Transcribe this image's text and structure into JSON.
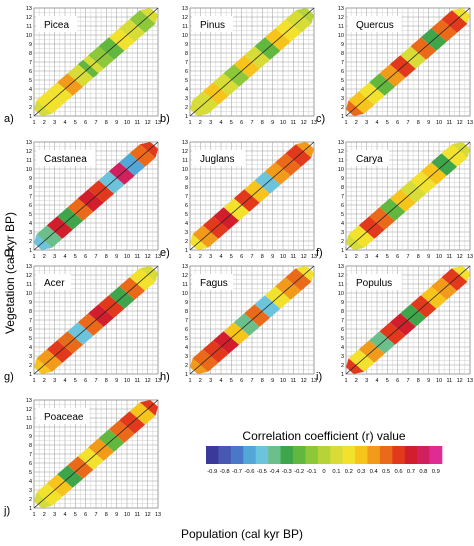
{
  "figure": {
    "ylabel": "Vegetation (cal kyr BP)",
    "xlabel": "Population (cal kyr BP)"
  },
  "colorbar": {
    "title": "Correlation coefficient (r) value",
    "ticks": [
      "-0.9",
      "-0.8",
      "-0.7",
      "-0.6",
      "-0.5",
      "-0.4",
      "-0.3",
      "-0.2",
      "-0.1",
      "0",
      "0.1",
      "0.2",
      "0.3",
      "0.4",
      "0.5",
      "0.6",
      "0.7",
      "0.8",
      "0.9"
    ],
    "colors": [
      "#3b3a9a",
      "#4658b0",
      "#4a78c8",
      "#52a6d8",
      "#6cc4dc",
      "#6bbf8a",
      "#3fa54a",
      "#62b83e",
      "#8cc83a",
      "#b6d43a",
      "#d8dc36",
      "#f2e22e",
      "#f7c41c",
      "#f29a1a",
      "#ea6a1a",
      "#e2391c",
      "#d21e2c",
      "#d0205e",
      "#e02c92"
    ]
  },
  "chart_data": [
    {
      "panel": "a)",
      "title": "Picea",
      "type": "heatmap",
      "x": [
        1,
        2,
        3,
        4,
        5,
        6,
        6.5,
        7,
        8,
        9,
        10,
        11,
        12
      ],
      "r": [
        0.1,
        0.2,
        0.25,
        0.4,
        0.1,
        -0.2,
        0.1,
        -0.1,
        -0.2,
        0.2,
        0.1,
        -0.1,
        0.1
      ],
      "xlim": [
        1,
        13
      ],
      "ylim": [
        1,
        13
      ],
      "xticks": [
        "1",
        "2",
        "3",
        "4",
        "5",
        "6",
        "7",
        "8",
        "9",
        "10",
        "11",
        "12",
        "13"
      ],
      "yticks": [
        "1",
        "2",
        "3",
        "4",
        "5",
        "6",
        "7",
        "8",
        "9",
        "10",
        "11",
        "12",
        "13"
      ]
    },
    {
      "panel": "b)",
      "title": "Pinus",
      "type": "heatmap",
      "x": [
        1,
        2,
        3,
        4,
        5,
        6,
        7,
        8,
        9,
        10,
        11,
        12
      ],
      "r": [
        0.1,
        0.1,
        0.3,
        0.1,
        -0.1,
        0.3,
        0.1,
        -0.2,
        0.3,
        0.2,
        0.1,
        0
      ],
      "xlim": [
        1,
        13
      ],
      "ylim": [
        1,
        13
      ],
      "xticks": [
        "1",
        "2",
        "3",
        "4",
        "5",
        "6",
        "7",
        "8",
        "9",
        "10",
        "11",
        "12",
        "13"
      ],
      "yticks": [
        "1",
        "2",
        "3",
        "4",
        "5",
        "6",
        "7",
        "8",
        "9",
        "10",
        "11",
        "12",
        "13"
      ]
    },
    {
      "panel": "c)",
      "title": "Quercus",
      "type": "heatmap",
      "x": [
        1,
        2,
        3,
        4,
        5,
        6,
        7,
        8,
        9,
        10,
        11,
        12
      ],
      "r": [
        0.5,
        0.3,
        0.2,
        -0.2,
        0.4,
        0.6,
        0.1,
        0.5,
        -0.3,
        0.5,
        0.6,
        0.2
      ],
      "xlim": [
        1,
        13
      ],
      "ylim": [
        1,
        13
      ],
      "xticks": [
        "1",
        "2",
        "3",
        "4",
        "5",
        "6",
        "7",
        "8",
        "9",
        "10",
        "11",
        "12",
        "13"
      ],
      "yticks": [
        "1",
        "2",
        "3",
        "4",
        "5",
        "6",
        "7",
        "8",
        "9",
        "10",
        "11",
        "12",
        "13"
      ]
    },
    {
      "panel": "d)",
      "title": "Castanea",
      "type": "heatmap",
      "x": [
        1,
        2,
        3,
        4,
        5,
        6,
        7,
        8,
        9,
        10,
        11,
        12
      ],
      "r": [
        -0.5,
        -0.4,
        0.7,
        -0.3,
        0.5,
        0.7,
        0.6,
        -0.5,
        0.8,
        -0.6,
        0.5,
        0.6
      ],
      "xlim": [
        1,
        13
      ],
      "ylim": [
        1,
        13
      ],
      "xticks": [
        "1",
        "2",
        "3",
        "4",
        "5",
        "6",
        "7",
        "8",
        "9",
        "10",
        "11",
        "12",
        "13"
      ],
      "yticks": [
        "1",
        "2",
        "3",
        "4",
        "5",
        "6",
        "7",
        "8",
        "9",
        "10",
        "11",
        "12",
        "13"
      ]
    },
    {
      "panel": "e)",
      "title": "Juglans",
      "type": "heatmap",
      "x": [
        1,
        2,
        3,
        4,
        5,
        6,
        7,
        8,
        9,
        10,
        11,
        12
      ],
      "r": [
        0.2,
        0.4,
        0.6,
        0.7,
        0.2,
        0.6,
        0.3,
        -0.5,
        0.4,
        0.5,
        0.6,
        0.4
      ],
      "xlim": [
        1,
        13
      ],
      "ylim": [
        1,
        13
      ],
      "xticks": [
        "1",
        "2",
        "3",
        "4",
        "5",
        "6",
        "7",
        "8",
        "9",
        "10",
        "11",
        "12",
        "13"
      ],
      "yticks": [
        "1",
        "2",
        "3",
        "4",
        "5",
        "6",
        "7",
        "8",
        "9",
        "10",
        "11",
        "12",
        "13"
      ]
    },
    {
      "panel": "f)",
      "title": "Carya",
      "type": "heatmap",
      "x": [
        1,
        2,
        3,
        4,
        5,
        6,
        7,
        8,
        9,
        10,
        11,
        12
      ],
      "r": [
        0.1,
        0.2,
        0.6,
        0.5,
        -0.2,
        0.3,
        0.1,
        0.2,
        0.3,
        -0.3,
        0.2,
        0.1
      ],
      "xlim": [
        1,
        13
      ],
      "ylim": [
        1,
        13
      ],
      "xticks": [
        "1",
        "2",
        "3",
        "4",
        "5",
        "6",
        "7",
        "8",
        "9",
        "10",
        "11",
        "12",
        "13"
      ],
      "yticks": [
        "1",
        "2",
        "3",
        "4",
        "5",
        "6",
        "7",
        "8",
        "9",
        "10",
        "11",
        "12",
        "13"
      ]
    },
    {
      "panel": "g)",
      "title": "Acer",
      "type": "heatmap",
      "x": [
        1,
        2,
        3,
        4,
        5,
        6,
        7,
        8,
        9,
        10,
        11,
        12
      ],
      "r": [
        0.3,
        0.4,
        0.6,
        0.5,
        -0.5,
        0.5,
        0.7,
        0.6,
        -0.3,
        0.5,
        0.2,
        0.1
      ],
      "xlim": [
        1,
        13
      ],
      "ylim": [
        1,
        13
      ],
      "xticks": [
        "1",
        "2",
        "3",
        "4",
        "5",
        "6",
        "7",
        "8",
        "9",
        "10",
        "11",
        "12",
        "13"
      ],
      "yticks": [
        "1",
        "2",
        "3",
        "4",
        "5",
        "6",
        "7",
        "8",
        "9",
        "10",
        "11",
        "12",
        "13"
      ]
    },
    {
      "panel": "h)",
      "title": "Fagus",
      "type": "heatmap",
      "x": [
        1,
        2,
        3,
        4,
        5,
        6,
        7,
        8,
        9,
        10,
        11,
        12
      ],
      "r": [
        0.4,
        0.5,
        0.6,
        0.7,
        0.3,
        -0.4,
        0.5,
        -0.5,
        0.2,
        0.4,
        0.5,
        0.2
      ],
      "xlim": [
        1,
        13
      ],
      "ylim": [
        1,
        13
      ],
      "xticks": [
        "1",
        "2",
        "3",
        "4",
        "5",
        "6",
        "7",
        "8",
        "9",
        "10",
        "11",
        "12",
        "13"
      ],
      "yticks": [
        "1",
        "2",
        "3",
        "4",
        "5",
        "6",
        "7",
        "8",
        "9",
        "10",
        "11",
        "12",
        "13"
      ]
    },
    {
      "panel": "i)",
      "title": "Populus",
      "type": "heatmap",
      "x": [
        1,
        2,
        3,
        4,
        5,
        6,
        7,
        8,
        9,
        10,
        11,
        12
      ],
      "r": [
        0.6,
        0.2,
        0.4,
        -0.4,
        0.6,
        0.7,
        -0.3,
        0.6,
        0.3,
        0.4,
        0.6,
        0.2
      ],
      "xlim": [
        1,
        13
      ],
      "ylim": [
        1,
        13
      ],
      "xticks": [
        "1",
        "2",
        "3",
        "4",
        "5",
        "6",
        "7",
        "8",
        "9",
        "10",
        "11",
        "12",
        "13"
      ],
      "yticks": [
        "1",
        "2",
        "3",
        "4",
        "5",
        "6",
        "7",
        "8",
        "9",
        "10",
        "11",
        "12",
        "13"
      ]
    },
    {
      "panel": "j)",
      "title": "Poaceae",
      "type": "heatmap",
      "x": [
        1,
        2,
        3,
        4,
        5,
        6,
        7,
        8,
        9,
        10,
        11,
        12
      ],
      "r": [
        0.1,
        0.2,
        0.3,
        -0.3,
        0.5,
        0.2,
        0.4,
        -0.2,
        0.5,
        0.6,
        0.3,
        0.6
      ],
      "xlim": [
        1,
        13
      ],
      "ylim": [
        1,
        13
      ],
      "xticks": [
        "1",
        "2",
        "3",
        "4",
        "5",
        "6",
        "7",
        "8",
        "9",
        "10",
        "11",
        "12",
        "13"
      ],
      "yticks": [
        "1",
        "2",
        "3",
        "4",
        "5",
        "6",
        "7",
        "8",
        "9",
        "10",
        "11",
        "12",
        "13"
      ]
    }
  ]
}
